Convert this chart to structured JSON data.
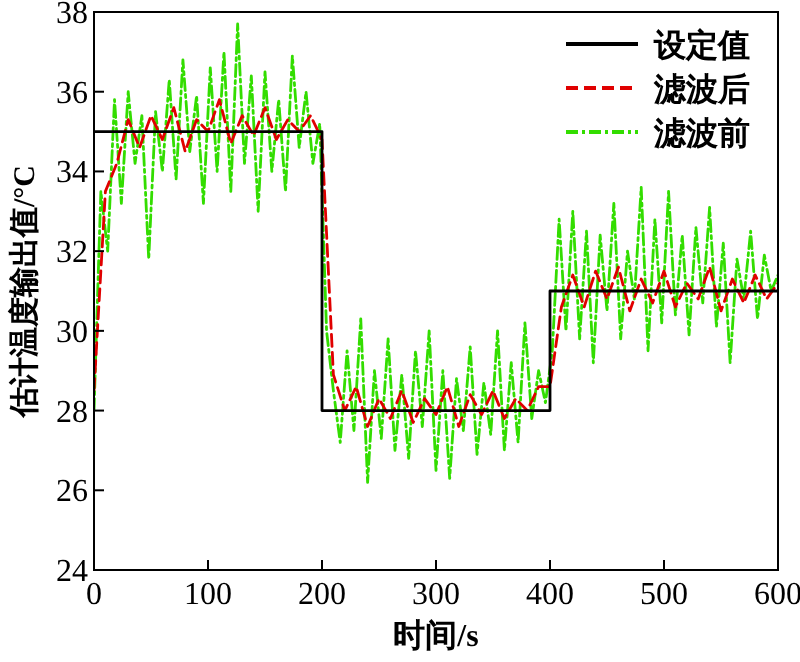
{
  "chart_data": {
    "type": "line",
    "xlabel": "时间/s",
    "ylabel": "估计温度输出值/°C",
    "xlim": [
      0,
      600
    ],
    "xticks": [
      0,
      100,
      200,
      300,
      400,
      500,
      600
    ],
    "ylim": [
      24,
      38
    ],
    "yticks": [
      24,
      26,
      28,
      30,
      32,
      34,
      36,
      38
    ],
    "grid": false,
    "legend": "top right",
    "marker": "none",
    "series": [
      {
        "name": "设定值",
        "color": "#000000",
        "line_style": "solid",
        "x": [
          0,
          200,
          200,
          400,
          400,
          600
        ],
        "values": [
          35,
          35,
          28,
          28,
          31,
          31
        ]
      },
      {
        "name": "滤波后",
        "color": "#e00000",
        "line_style": "dashed",
        "x": [
          0,
          10,
          20,
          30,
          40,
          50,
          60,
          70,
          80,
          90,
          100,
          110,
          120,
          130,
          140,
          150,
          160,
          170,
          180,
          190,
          200,
          210,
          220,
          230,
          240,
          250,
          260,
          270,
          280,
          290,
          300,
          310,
          320,
          330,
          340,
          350,
          360,
          370,
          380,
          390,
          400,
          410,
          420,
          430,
          440,
          450,
          460,
          470,
          480,
          490,
          500,
          510,
          520,
          530,
          540,
          550,
          560,
          570,
          580,
          590,
          600
        ],
        "values": [
          28.5,
          33.5,
          34.2,
          35.3,
          34.6,
          35.4,
          34.8,
          35.6,
          34.5,
          35.3,
          35.0,
          35.8,
          34.7,
          35.4,
          34.9,
          35.6,
          34.8,
          35.3,
          35.0,
          35.4,
          34.8,
          28.9,
          28.0,
          28.6,
          27.6,
          28.3,
          27.8,
          28.5,
          27.7,
          28.3,
          27.9,
          28.6,
          27.6,
          28.4,
          27.9,
          28.5,
          27.8,
          28.3,
          28.0,
          28.6,
          28.6,
          30.6,
          31.4,
          30.6,
          31.5,
          30.8,
          31.6,
          30.5,
          31.3,
          30.7,
          31.5,
          30.6,
          31.2,
          30.8,
          31.6,
          30.5,
          31.3,
          30.7,
          31.4,
          30.8,
          31.2
        ]
      },
      {
        "name": "滤波前",
        "color": "#33dd00",
        "line_style": "dashdot",
        "x": [
          0,
          6,
          12,
          18,
          24,
          30,
          36,
          42,
          48,
          54,
          60,
          66,
          72,
          78,
          84,
          90,
          96,
          102,
          108,
          114,
          120,
          126,
          132,
          138,
          144,
          150,
          156,
          162,
          168,
          174,
          180,
          186,
          192,
          198,
          204,
          210,
          216,
          222,
          228,
          234,
          240,
          246,
          252,
          258,
          264,
          270,
          276,
          282,
          288,
          294,
          300,
          306,
          312,
          318,
          324,
          330,
          336,
          342,
          348,
          354,
          360,
          366,
          372,
          378,
          384,
          390,
          396,
          402,
          408,
          414,
          420,
          426,
          432,
          438,
          444,
          450,
          456,
          462,
          468,
          474,
          480,
          486,
          492,
          498,
          504,
          510,
          516,
          522,
          528,
          534,
          540,
          546,
          552,
          558,
          564,
          570,
          576,
          582,
          588,
          594,
          600
        ],
        "values": [
          28.0,
          33.5,
          32.0,
          35.8,
          33.2,
          36.0,
          34.2,
          35.4,
          31.8,
          35.5,
          34.0,
          36.3,
          33.8,
          36.8,
          34.5,
          35.9,
          33.2,
          36.6,
          34.0,
          37.0,
          33.5,
          37.7,
          34.2,
          36.4,
          33.0,
          36.5,
          34.0,
          35.8,
          33.5,
          36.9,
          34.6,
          36.0,
          34.2,
          35.2,
          30.0,
          28.5,
          27.2,
          29.5,
          27.5,
          30.3,
          26.2,
          29.0,
          27.3,
          29.8,
          27.0,
          28.9,
          26.8,
          29.5,
          27.6,
          30.0,
          26.5,
          29.0,
          26.3,
          28.8,
          27.5,
          29.6,
          26.9,
          28.7,
          27.4,
          30.0,
          27.0,
          29.2,
          27.2,
          30.2,
          27.8,
          29.0,
          28.2,
          29.5,
          32.8,
          30.0,
          33.0,
          29.8,
          32.5,
          29.2,
          32.4,
          30.5,
          33.2,
          29.8,
          32.0,
          30.8,
          33.6,
          29.5,
          32.8,
          30.2,
          33.5,
          30.4,
          32.4,
          29.9,
          32.6,
          30.7,
          33.1,
          30.1,
          32.2,
          29.2,
          31.8,
          30.8,
          32.5,
          30.3,
          31.9,
          31.0,
          31.4
        ]
      }
    ]
  }
}
